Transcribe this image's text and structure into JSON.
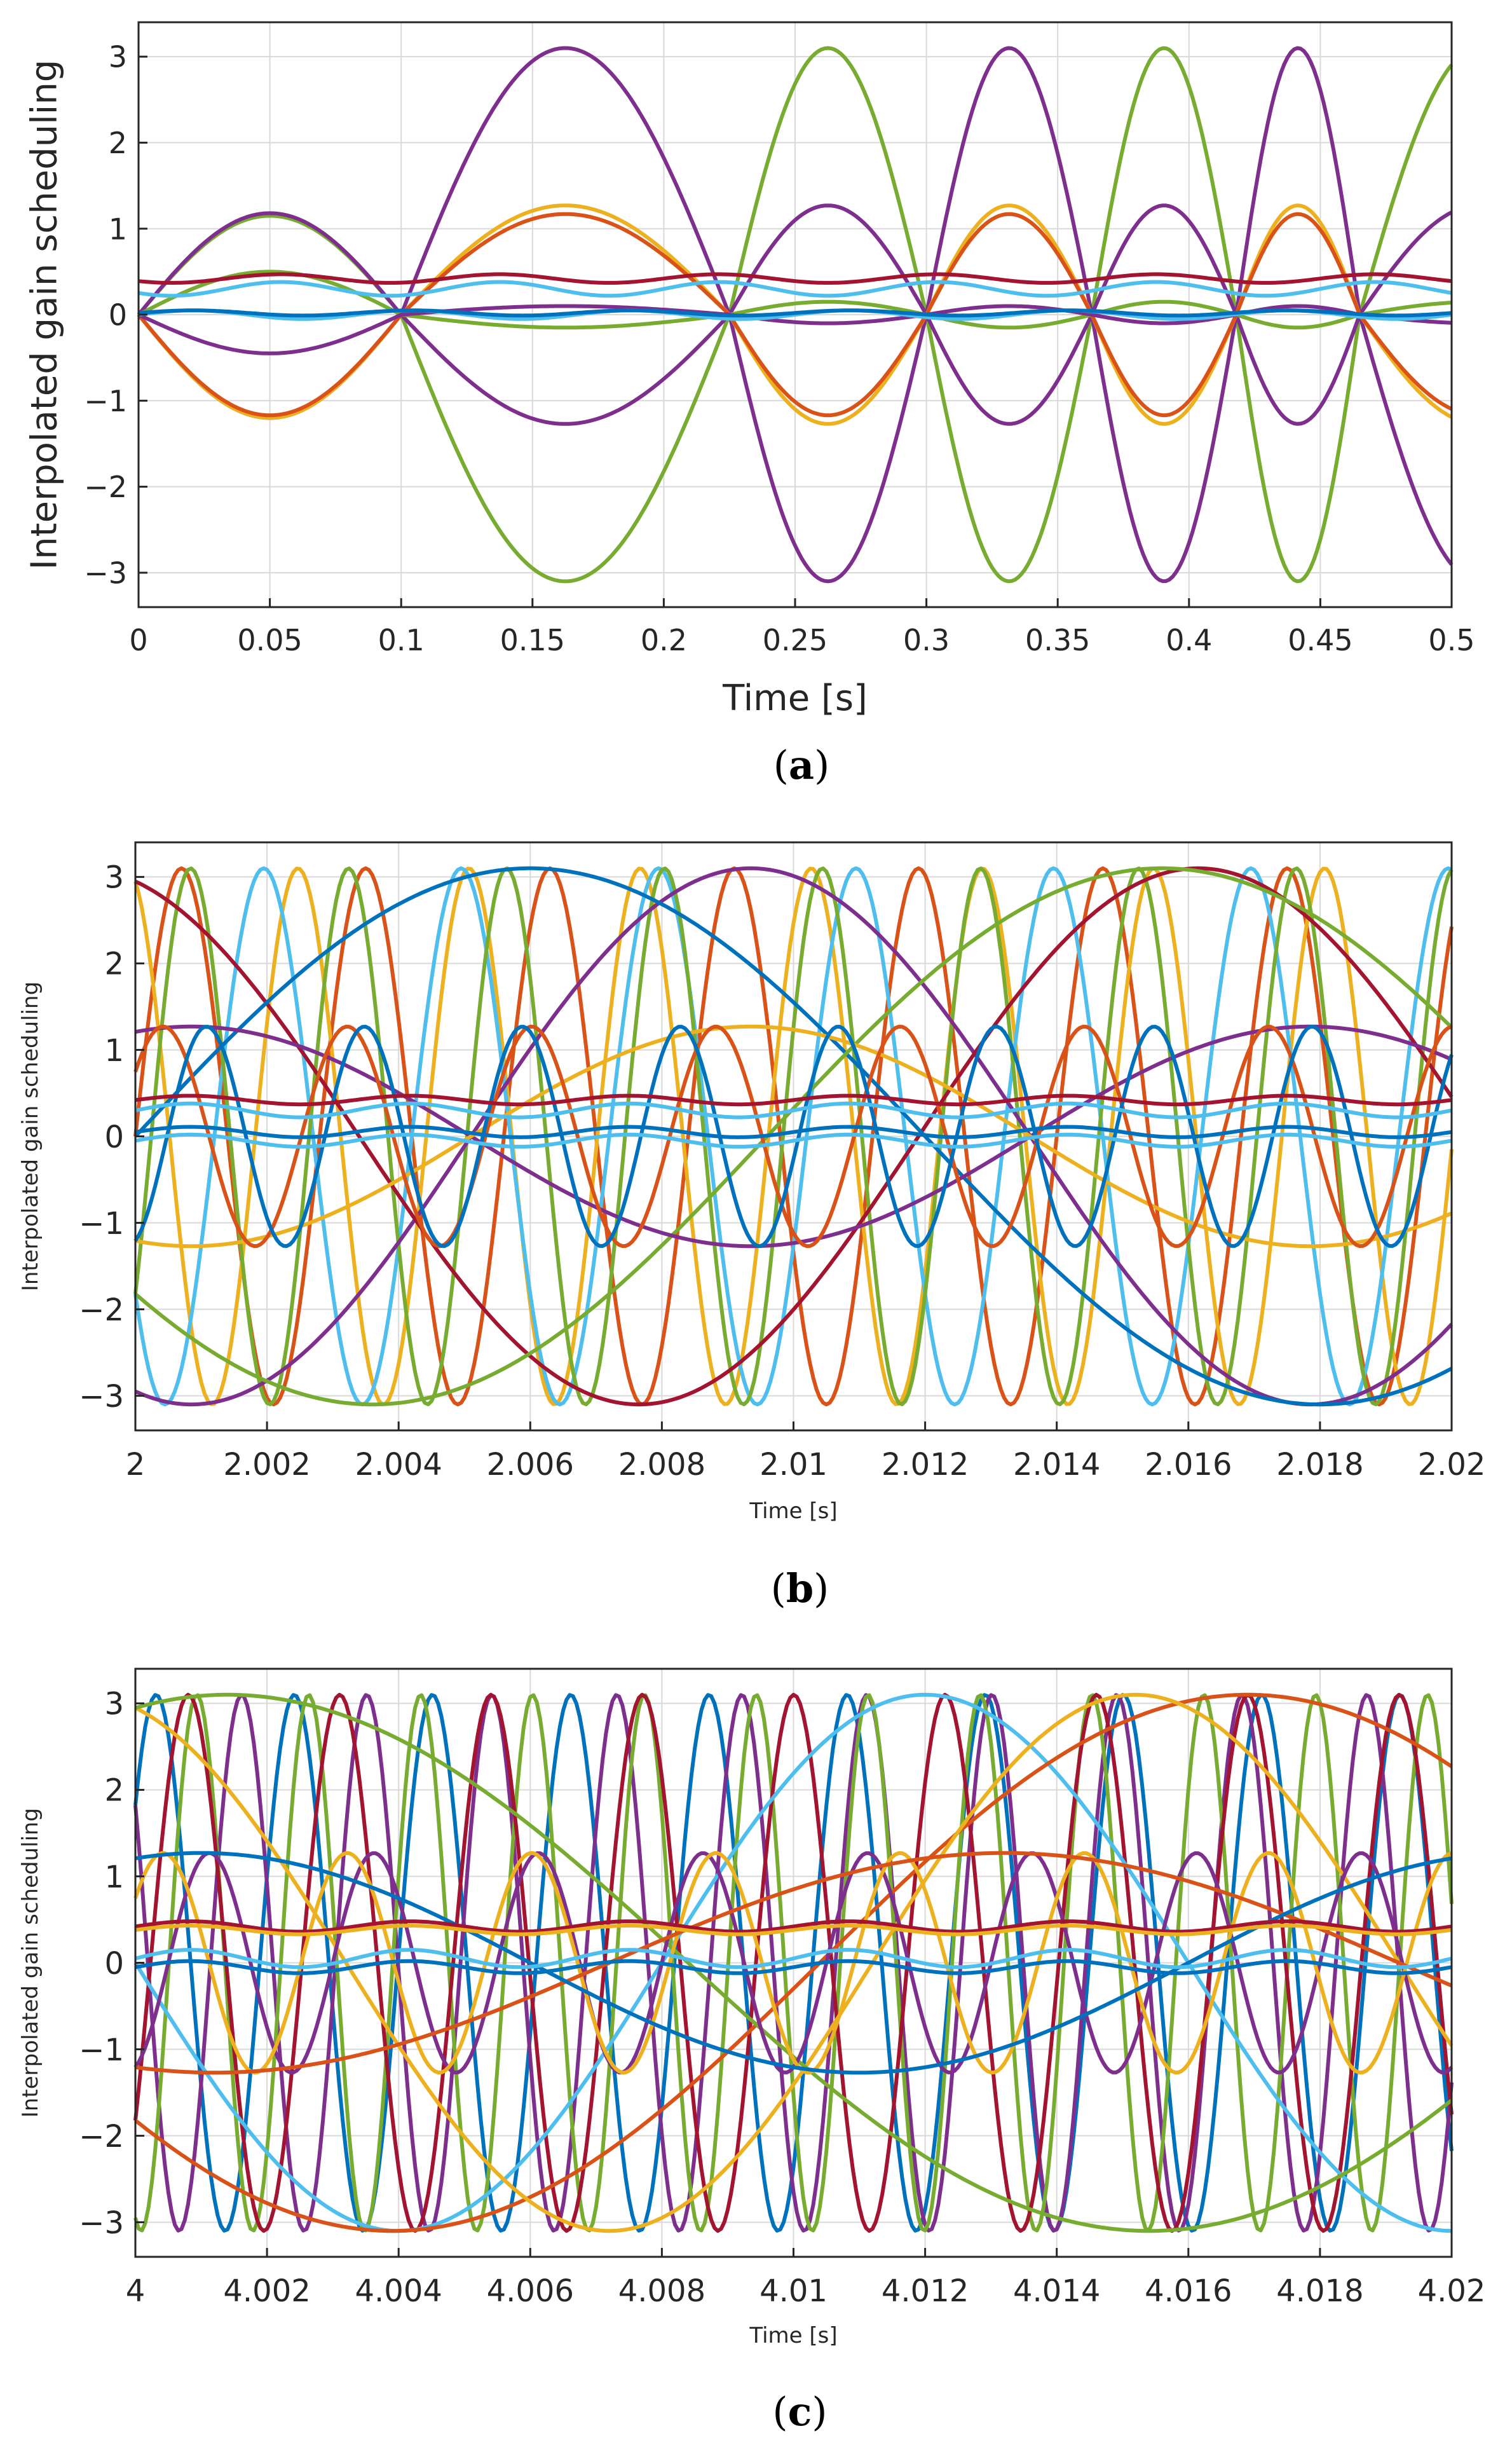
{
  "colors": {
    "blue": "#0072BD",
    "orange": "#D95319",
    "yellow": "#EDB120",
    "purple": "#7E2F8E",
    "green": "#77AC30",
    "cyan": "#4DBEEE",
    "red": "#A2142F",
    "grid": "#d9d9d9",
    "axis": "#262626"
  },
  "chart_data": [
    {
      "id": "a",
      "type": "line",
      "caption": "(a)",
      "caption_open": "(",
      "caption_letter": "a",
      "caption_close": ")",
      "xlabel": "Time [s]",
      "ylabel": "Interpolated gain scheduling",
      "xlim": [
        0,
        0.5
      ],
      "ylim": [
        -3.4,
        3.4
      ],
      "xticks": [
        0,
        0.05,
        0.1,
        0.15,
        0.2,
        0.25,
        0.3,
        0.35,
        0.4,
        0.45,
        0.5
      ],
      "xtick_labels": [
        "0",
        "0.05",
        "0.1",
        "0.15",
        "0.2",
        "0.25",
        "0.3",
        "0.35",
        "0.4",
        "0.45",
        "0.5"
      ],
      "yticks": [
        -3,
        -2,
        -1,
        0,
        1,
        2,
        3
      ],
      "ytick_labels": [
        "−3",
        "−2",
        "−1",
        "0",
        "1",
        "2",
        "3"
      ],
      "grid": true,
      "series": [
        {
          "name": "s1",
          "color": "green",
          "amplitude": 3.1,
          "sign": 1,
          "model": "chirp",
          "crossings": [
            0.1,
            0.225,
            0.3,
            0.363,
            0.418,
            0.465
          ],
          "early_amplitude": 1.15,
          "phase_end": 0.63
        },
        {
          "name": "s2",
          "color": "purple",
          "amplitude": 3.1,
          "sign": -1,
          "model": "chirp",
          "crossings": [
            0.1,
            0.225,
            0.3,
            0.363,
            0.418,
            0.465
          ],
          "early_amplitude": 1.2,
          "phase_end": 0.63
        },
        {
          "name": "s3",
          "color": "purple",
          "amplitude": 1.27,
          "sign": 1,
          "model": "chirp",
          "crossings": [
            0.1,
            0.225,
            0.3,
            0.363,
            0.418,
            0.465
          ],
          "early_amplitude": 1.18,
          "phase_end": 0.63
        },
        {
          "name": "s4",
          "color": "yellow",
          "amplitude": 1.27,
          "sign": -1,
          "model": "chirp",
          "crossings": [
            0.1,
            0.225,
            0.3,
            0.363,
            0.418,
            0.465
          ],
          "early_amplitude": 1.2,
          "phase_end": 0.63
        },
        {
          "name": "s5",
          "color": "orange",
          "amplitude": 1.17,
          "sign": -1,
          "model": "chirp",
          "crossings": [
            0.1,
            0.225,
            0.3,
            0.363,
            0.418,
            0.465
          ],
          "early_amplitude": 1.17,
          "phase_end": 0.63
        },
        {
          "name": "s6",
          "color": "green",
          "amplitude": 0.15,
          "sign": 1,
          "model": "chirp",
          "crossings": [
            0.1,
            0.225,
            0.3,
            0.363,
            0.418,
            0.465
          ],
          "early_amplitude": 0.5,
          "phase_end": 0.63
        },
        {
          "name": "s7",
          "color": "purple",
          "amplitude": 0.1,
          "sign": -1,
          "model": "chirp",
          "crossings": [
            0.1,
            0.225,
            0.3,
            0.363,
            0.418,
            0.465
          ],
          "early_amplitude": 0.45,
          "phase_end": 0.63
        },
        {
          "name": "s8",
          "color": "red",
          "amplitude": 0.45,
          "sign": 1,
          "model": "flat",
          "level": 0.42,
          "ripple": 0.05
        },
        {
          "name": "s9",
          "color": "cyan",
          "amplitude": 0.35,
          "sign": 1,
          "model": "flat",
          "level": 0.3,
          "ripple": 0.08
        },
        {
          "name": "s10",
          "color": "cyan",
          "amplitude": 0.05,
          "sign": 1,
          "model": "flat",
          "level": 0.0,
          "ripple": 0.05
        },
        {
          "name": "s11",
          "color": "blue",
          "amplitude": 0.05,
          "sign": 1,
          "model": "flat",
          "level": 0.02,
          "ripple": 0.03
        }
      ]
    },
    {
      "id": "b",
      "type": "line",
      "caption": "(b)",
      "caption_open": "(",
      "caption_letter": "b",
      "caption_close": ")",
      "xlabel": "Time [s]",
      "ylabel": "Interpolated gain scheduling",
      "xlim": [
        2,
        2.02
      ],
      "ylim": [
        -3.4,
        3.4
      ],
      "xticks": [
        2,
        2.002,
        2.004,
        2.006,
        2.008,
        2.01,
        2.012,
        2.014,
        2.016,
        2.018,
        2.02
      ],
      "xtick_labels": [
        "2",
        "2.002",
        "2.004",
        "2.006",
        "2.008",
        "2.01",
        "2.012",
        "2.014",
        "2.016",
        "2.018",
        "2.02"
      ],
      "yticks": [
        -3,
        -2,
        -1,
        0,
        1,
        2,
        3
      ],
      "ytick_labels": [
        "−3",
        "−2",
        "−1",
        "0",
        "1",
        "2",
        "3"
      ],
      "grid": true,
      "series": [
        {
          "name": "b1",
          "color": "orange",
          "amplitude": 3.1,
          "sign": 1,
          "model": "sine",
          "period": 0.0028,
          "phase": 0.0
        },
        {
          "name": "b2",
          "color": "yellow",
          "amplitude": 3.1,
          "sign": 1,
          "model": "sine",
          "period": 0.0026,
          "phase": 0.3
        },
        {
          "name": "b3",
          "color": "cyan",
          "amplitude": 3.1,
          "sign": 1,
          "model": "sine",
          "period": 0.003,
          "phase": 0.6
        },
        {
          "name": "b4",
          "color": "green",
          "amplitude": 3.1,
          "sign": 1,
          "model": "sine",
          "period": 0.0024,
          "phase": 0.9
        },
        {
          "name": "b5",
          "color": "purple",
          "amplitude": 3.1,
          "sign": -1,
          "model": "sine",
          "period": 0.017,
          "phase": 0.2
        },
        {
          "name": "b6",
          "color": "red",
          "amplitude": 3.1,
          "sign": 1,
          "model": "sine",
          "period": 0.017,
          "phase": 0.3
        },
        {
          "name": "b7",
          "color": "blue",
          "amplitude": 3.1,
          "sign": -1,
          "model": "sine",
          "period": 0.024,
          "phase": 0.5
        },
        {
          "name": "b8",
          "color": "green",
          "amplitude": 3.1,
          "sign": -1,
          "model": "sine",
          "period": 0.024,
          "phase": 0.1
        },
        {
          "name": "b9",
          "color": "purple",
          "amplitude": 1.27,
          "sign": 1,
          "model": "sine",
          "period": 0.017,
          "phase": 0.2
        },
        {
          "name": "b10",
          "color": "yellow",
          "amplitude": 1.27,
          "sign": -1,
          "model": "sine",
          "period": 0.017,
          "phase": 0.2
        },
        {
          "name": "b11",
          "color": "orange",
          "amplitude": 1.27,
          "sign": 1,
          "model": "sine",
          "period": 0.0028,
          "phase": 0.1
        },
        {
          "name": "b12",
          "color": "blue",
          "amplitude": 1.27,
          "sign": 1,
          "model": "sine",
          "period": 0.0024,
          "phase": 0.8
        },
        {
          "name": "b13",
          "color": "red",
          "amplitude": 0.45,
          "sign": 1,
          "model": "flat",
          "level": 0.42,
          "ripple": 0.05
        },
        {
          "name": "b14",
          "color": "cyan",
          "amplitude": 0.35,
          "sign": 1,
          "model": "flat",
          "level": 0.3,
          "ripple": 0.08
        },
        {
          "name": "b15",
          "color": "blue",
          "amplitude": 0.1,
          "sign": 1,
          "model": "flat",
          "level": 0.05,
          "ripple": 0.06
        },
        {
          "name": "b16",
          "color": "cyan",
          "amplitude": 0.1,
          "sign": 1,
          "model": "flat",
          "level": -0.05,
          "ripple": 0.07
        }
      ]
    },
    {
      "id": "c",
      "type": "line",
      "caption": "(c)",
      "caption_open": "(",
      "caption_letter": "c",
      "caption_close": ")",
      "xlabel": "Time [s]",
      "ylabel": "Interpolated gain scheduling",
      "xlim": [
        4,
        4.02
      ],
      "ylim": [
        -3.4,
        3.4
      ],
      "xticks": [
        4,
        4.002,
        4.004,
        4.006,
        4.008,
        4.01,
        4.012,
        4.014,
        4.016,
        4.018,
        4.02
      ],
      "xtick_labels": [
        "4",
        "4.002",
        "4.004",
        "4.006",
        "4.008",
        "4.01",
        "4.012",
        "4.014",
        "4.016",
        "4.018",
        "4.02"
      ],
      "yticks": [
        -3,
        -2,
        -1,
        0,
        1,
        2,
        3
      ],
      "ytick_labels": [
        "−3",
        "−2",
        "−1",
        "0",
        "1",
        "2",
        "3"
      ],
      "grid": true,
      "series": [
        {
          "name": "c1",
          "color": "blue",
          "amplitude": 3.1,
          "sign": 1,
          "model": "sine",
          "period": 0.0021,
          "phase": 0.1
        },
        {
          "name": "c2",
          "color": "purple",
          "amplitude": 3.1,
          "sign": 1,
          "model": "sine",
          "period": 0.0019,
          "phase": 0.4
        },
        {
          "name": "c3",
          "color": "green",
          "amplitude": 3.1,
          "sign": 1,
          "model": "sine",
          "period": 0.0017,
          "phase": 0.7
        },
        {
          "name": "c4",
          "color": "red",
          "amplitude": 3.1,
          "sign": 1,
          "model": "sine",
          "period": 0.0023,
          "phase": 0.9
        },
        {
          "name": "c5",
          "color": "cyan",
          "amplitude": 3.1,
          "sign": -1,
          "model": "sine",
          "period": 0.016,
          "phase": 0.0
        },
        {
          "name": "c6",
          "color": "orange",
          "amplitude": 3.1,
          "sign": -1,
          "model": "sine",
          "period": 0.026,
          "phase": 0.1
        },
        {
          "name": "c7",
          "color": "yellow",
          "amplitude": 3.1,
          "sign": 1,
          "model": "sine",
          "period": 0.016,
          "phase": 0.3
        },
        {
          "name": "c8",
          "color": "green",
          "amplitude": 3.1,
          "sign": 1,
          "model": "sine",
          "period": 0.028,
          "phase": 0.2
        },
        {
          "name": "c9",
          "color": "purple",
          "amplitude": 1.27,
          "sign": -1,
          "model": "sine",
          "period": 0.0025,
          "phase": 0.3
        },
        {
          "name": "c10",
          "color": "yellow",
          "amplitude": 1.27,
          "sign": -1,
          "model": "sine",
          "period": 0.0028,
          "phase": 0.6
        },
        {
          "name": "c11",
          "color": "orange",
          "amplitude": 1.27,
          "sign": -1,
          "model": "sine",
          "period": 0.024,
          "phase": 0.2
        },
        {
          "name": "c12",
          "color": "blue",
          "amplitude": 1.27,
          "sign": 1,
          "model": "sine",
          "period": 0.02,
          "phase": 0.2
        },
        {
          "name": "c13",
          "color": "red",
          "amplitude": 0.45,
          "sign": 1,
          "model": "flat",
          "level": 0.42,
          "ripple": 0.06
        },
        {
          "name": "c14",
          "color": "yellow",
          "amplitude": 0.4,
          "sign": 1,
          "model": "flat",
          "level": 0.38,
          "ripple": 0.05
        },
        {
          "name": "c15",
          "color": "cyan",
          "amplitude": 0.1,
          "sign": 1,
          "model": "flat",
          "level": 0.05,
          "ripple": 0.1
        },
        {
          "name": "c16",
          "color": "blue",
          "amplitude": 0.1,
          "sign": 1,
          "model": "flat",
          "level": -0.05,
          "ripple": 0.07
        }
      ]
    }
  ]
}
